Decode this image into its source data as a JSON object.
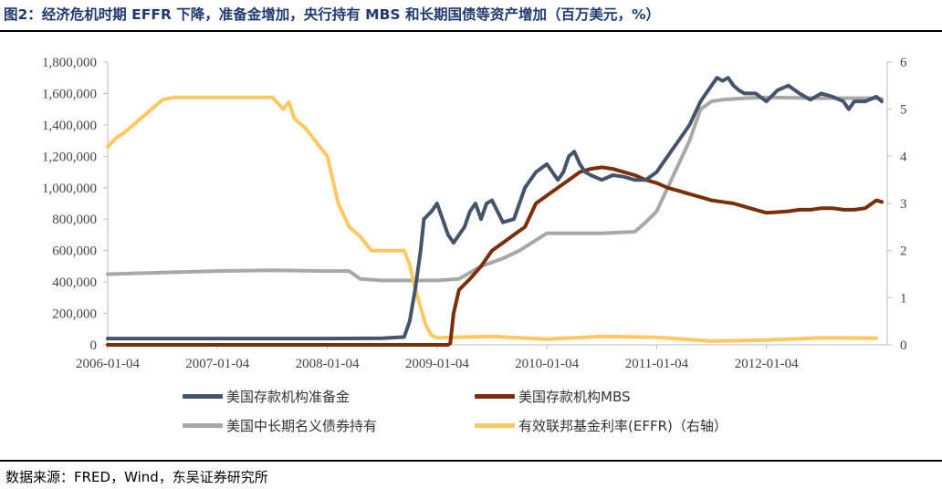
{
  "title": "图2：经济危机时期 EFFR 下降，准备金增加，央行持有 MBS 和长期国债等资产增加（百万美元，%）",
  "source": "数据来源：FRED，Wind，东吴证券研究所",
  "chart_data": {
    "type": "line",
    "title": "",
    "xlabel": "",
    "ylabel": "",
    "ylim_left": [
      0,
      1800000
    ],
    "ylim_right": [
      0,
      6
    ],
    "yticks_left": [
      "0",
      "200,000",
      "400,000",
      "600,000",
      "800,000",
      "1,000,000",
      "1,200,000",
      "1,400,000",
      "1,600,000",
      "1,800,000"
    ],
    "yticks_right": [
      "0",
      "1",
      "2",
      "3",
      "4",
      "5",
      "6"
    ],
    "xticks": [
      "2006-01-04",
      "2007-01-04",
      "2008-01-04",
      "2009-01-04",
      "2010-01-04",
      "2011-01-04",
      "2012-01-04"
    ],
    "xrange": [
      2006.0,
      2013.1
    ],
    "legend_position": "bottom",
    "grid": false,
    "series": [
      {
        "name": "美国存款机构准备金",
        "color": "#44546a",
        "axis": "left",
        "points": [
          [
            2006.0,
            40000
          ],
          [
            2007.0,
            40000
          ],
          [
            2008.0,
            40000
          ],
          [
            2008.5,
            42000
          ],
          [
            2008.7,
            50000
          ],
          [
            2008.75,
            150000
          ],
          [
            2008.8,
            350000
          ],
          [
            2008.85,
            600000
          ],
          [
            2008.88,
            800000
          ],
          [
            2008.95,
            850000
          ],
          [
            2009.0,
            900000
          ],
          [
            2009.05,
            800000
          ],
          [
            2009.1,
            700000
          ],
          [
            2009.15,
            650000
          ],
          [
            2009.2,
            700000
          ],
          [
            2009.25,
            750000
          ],
          [
            2009.3,
            850000
          ],
          [
            2009.35,
            900000
          ],
          [
            2009.4,
            800000
          ],
          [
            2009.45,
            900000
          ],
          [
            2009.5,
            920000
          ],
          [
            2009.55,
            850000
          ],
          [
            2009.6,
            780000
          ],
          [
            2009.7,
            800000
          ],
          [
            2009.8,
            1000000
          ],
          [
            2009.9,
            1100000
          ],
          [
            2010.0,
            1150000
          ],
          [
            2010.05,
            1100000
          ],
          [
            2010.1,
            1050000
          ],
          [
            2010.15,
            1100000
          ],
          [
            2010.2,
            1200000
          ],
          [
            2010.25,
            1230000
          ],
          [
            2010.3,
            1150000
          ],
          [
            2010.35,
            1100000
          ],
          [
            2010.4,
            1080000
          ],
          [
            2010.5,
            1050000
          ],
          [
            2010.6,
            1080000
          ],
          [
            2010.7,
            1070000
          ],
          [
            2010.8,
            1050000
          ],
          [
            2010.9,
            1050000
          ],
          [
            2011.0,
            1100000
          ],
          [
            2011.05,
            1150000
          ],
          [
            2011.1,
            1200000
          ],
          [
            2011.2,
            1300000
          ],
          [
            2011.3,
            1400000
          ],
          [
            2011.4,
            1550000
          ],
          [
            2011.5,
            1650000
          ],
          [
            2011.55,
            1700000
          ],
          [
            2011.6,
            1680000
          ],
          [
            2011.65,
            1700000
          ],
          [
            2011.7,
            1650000
          ],
          [
            2011.75,
            1620000
          ],
          [
            2011.8,
            1600000
          ],
          [
            2011.9,
            1600000
          ],
          [
            2012.0,
            1550000
          ],
          [
            2012.1,
            1620000
          ],
          [
            2012.2,
            1650000
          ],
          [
            2012.3,
            1600000
          ],
          [
            2012.4,
            1560000
          ],
          [
            2012.5,
            1600000
          ],
          [
            2012.6,
            1580000
          ],
          [
            2012.7,
            1550000
          ],
          [
            2012.75,
            1500000
          ],
          [
            2012.8,
            1550000
          ],
          [
            2012.9,
            1550000
          ],
          [
            2013.0,
            1580000
          ],
          [
            2013.05,
            1550000
          ]
        ]
      },
      {
        "name": "美国存款机构MBS",
        "color": "#7a2f0a",
        "axis": "left",
        "points": [
          [
            2006.0,
            0
          ],
          [
            2007.0,
            0
          ],
          [
            2008.0,
            0
          ],
          [
            2009.0,
            0
          ],
          [
            2009.1,
            0
          ],
          [
            2009.12,
            10000
          ],
          [
            2009.15,
            200000
          ],
          [
            2009.2,
            350000
          ],
          [
            2009.3,
            420000
          ],
          [
            2009.4,
            500000
          ],
          [
            2009.5,
            600000
          ],
          [
            2009.6,
            650000
          ],
          [
            2009.7,
            700000
          ],
          [
            2009.8,
            750000
          ],
          [
            2009.9,
            900000
          ],
          [
            2010.0,
            950000
          ],
          [
            2010.1,
            1000000
          ],
          [
            2010.2,
            1050000
          ],
          [
            2010.3,
            1100000
          ],
          [
            2010.4,
            1120000
          ],
          [
            2010.5,
            1130000
          ],
          [
            2010.6,
            1120000
          ],
          [
            2010.7,
            1100000
          ],
          [
            2010.8,
            1080000
          ],
          [
            2010.9,
            1050000
          ],
          [
            2011.0,
            1030000
          ],
          [
            2011.1,
            1000000
          ],
          [
            2011.2,
            980000
          ],
          [
            2011.3,
            960000
          ],
          [
            2011.4,
            940000
          ],
          [
            2011.5,
            920000
          ],
          [
            2011.6,
            910000
          ],
          [
            2011.7,
            900000
          ],
          [
            2011.8,
            880000
          ],
          [
            2011.9,
            860000
          ],
          [
            2012.0,
            840000
          ],
          [
            2012.1,
            845000
          ],
          [
            2012.2,
            850000
          ],
          [
            2012.3,
            860000
          ],
          [
            2012.4,
            860000
          ],
          [
            2012.5,
            870000
          ],
          [
            2012.6,
            870000
          ],
          [
            2012.7,
            860000
          ],
          [
            2012.8,
            860000
          ],
          [
            2012.9,
            870000
          ],
          [
            2013.0,
            920000
          ],
          [
            2013.05,
            910000
          ]
        ]
      },
      {
        "name": "美国中长期名义债券持有",
        "color": "#a8a8a8",
        "axis": "left",
        "points": [
          [
            2006.0,
            450000
          ],
          [
            2006.5,
            460000
          ],
          [
            2007.0,
            470000
          ],
          [
            2007.5,
            475000
          ],
          [
            2008.0,
            470000
          ],
          [
            2008.2,
            470000
          ],
          [
            2008.3,
            420000
          ],
          [
            2008.5,
            410000
          ],
          [
            2009.0,
            410000
          ],
          [
            2009.2,
            420000
          ],
          [
            2009.4,
            500000
          ],
          [
            2009.6,
            550000
          ],
          [
            2009.75,
            600000
          ],
          [
            2010.0,
            710000
          ],
          [
            2010.5,
            710000
          ],
          [
            2010.8,
            720000
          ],
          [
            2010.9,
            780000
          ],
          [
            2011.0,
            850000
          ],
          [
            2011.1,
            1000000
          ],
          [
            2011.2,
            1150000
          ],
          [
            2011.3,
            1300000
          ],
          [
            2011.4,
            1500000
          ],
          [
            2011.5,
            1550000
          ],
          [
            2011.6,
            1560000
          ],
          [
            2011.8,
            1570000
          ],
          [
            2012.0,
            1575000
          ],
          [
            2012.5,
            1570000
          ],
          [
            2013.0,
            1570000
          ],
          [
            2013.05,
            1565000
          ]
        ]
      },
      {
        "name": "有效联邦基金利率(EFFR)（右轴）",
        "color": "#ffc95f",
        "axis": "right",
        "points": [
          [
            2006.0,
            4.2
          ],
          [
            2006.08,
            4.4
          ],
          [
            2006.15,
            4.5
          ],
          [
            2006.25,
            4.7
          ],
          [
            2006.35,
            4.9
          ],
          [
            2006.5,
            5.2
          ],
          [
            2006.6,
            5.25
          ],
          [
            2007.0,
            5.25
          ],
          [
            2007.5,
            5.25
          ],
          [
            2007.6,
            5.0
          ],
          [
            2007.65,
            5.15
          ],
          [
            2007.7,
            4.8
          ],
          [
            2007.8,
            4.6
          ],
          [
            2007.9,
            4.3
          ],
          [
            2008.0,
            4.0
          ],
          [
            2008.05,
            3.5
          ],
          [
            2008.1,
            3.0
          ],
          [
            2008.2,
            2.5
          ],
          [
            2008.3,
            2.3
          ],
          [
            2008.4,
            2.0
          ],
          [
            2008.5,
            2.0
          ],
          [
            2008.6,
            2.0
          ],
          [
            2008.7,
            2.0
          ],
          [
            2008.75,
            1.7
          ],
          [
            2008.8,
            1.2
          ],
          [
            2008.85,
            0.8
          ],
          [
            2008.9,
            0.4
          ],
          [
            2008.95,
            0.2
          ],
          [
            2009.0,
            0.15
          ],
          [
            2009.5,
            0.18
          ],
          [
            2010.0,
            0.12
          ],
          [
            2010.5,
            0.18
          ],
          [
            2011.0,
            0.16
          ],
          [
            2011.5,
            0.08
          ],
          [
            2012.0,
            0.1
          ],
          [
            2012.5,
            0.15
          ],
          [
            2013.0,
            0.14
          ]
        ]
      }
    ]
  }
}
